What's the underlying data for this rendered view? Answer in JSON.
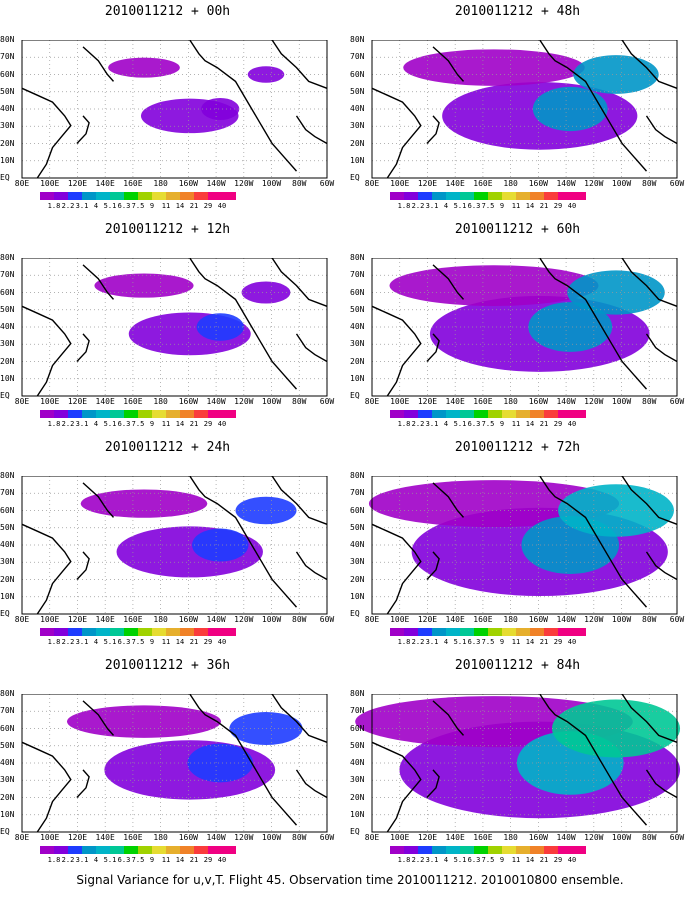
{
  "panels": [
    {
      "title": "2010011212 + 00h",
      "intensity": 0.15
    },
    {
      "title": "2010011212 + 48h",
      "intensity": 0.55
    },
    {
      "title": "2010011212 + 12h",
      "intensity": 0.25
    },
    {
      "title": "2010011212 + 60h",
      "intensity": 0.65
    },
    {
      "title": "2010011212 + 24h",
      "intensity": 0.35
    },
    {
      "title": "2010011212 + 72h",
      "intensity": 0.8
    },
    {
      "title": "2010011212 + 36h",
      "intensity": 0.45
    },
    {
      "title": "2010011212 + 84h",
      "intensity": 0.9
    }
  ],
  "lat_labels": [
    "80N",
    "70N",
    "60N",
    "50N",
    "40N",
    "30N",
    "20N",
    "10N",
    "EQ"
  ],
  "lon_labels": [
    "80E",
    "100E",
    "120E",
    "140E",
    "160E",
    "180",
    "160W",
    "140W",
    "120W",
    "100W",
    "80W",
    "60W"
  ],
  "colorbar": {
    "labels": [
      "1.8",
      "2.2",
      "3.1",
      "4",
      "5.1",
      "6.3",
      "7.5",
      "9",
      "11",
      "14",
      "21",
      "29",
      "40"
    ],
    "colors": [
      "#a000c8",
      "#8200dc",
      "#1e3cff",
      "#0096c8",
      "#00b4c8",
      "#00c896",
      "#00d200",
      "#a0d200",
      "#e6dc32",
      "#e6af2d",
      "#f08228",
      "#fa3c3c",
      "#f00082"
    ]
  },
  "caption": "Signal Variance for u,v,T. Flight 45. Observation time 2010011212. 2010010800 ensemble."
}
